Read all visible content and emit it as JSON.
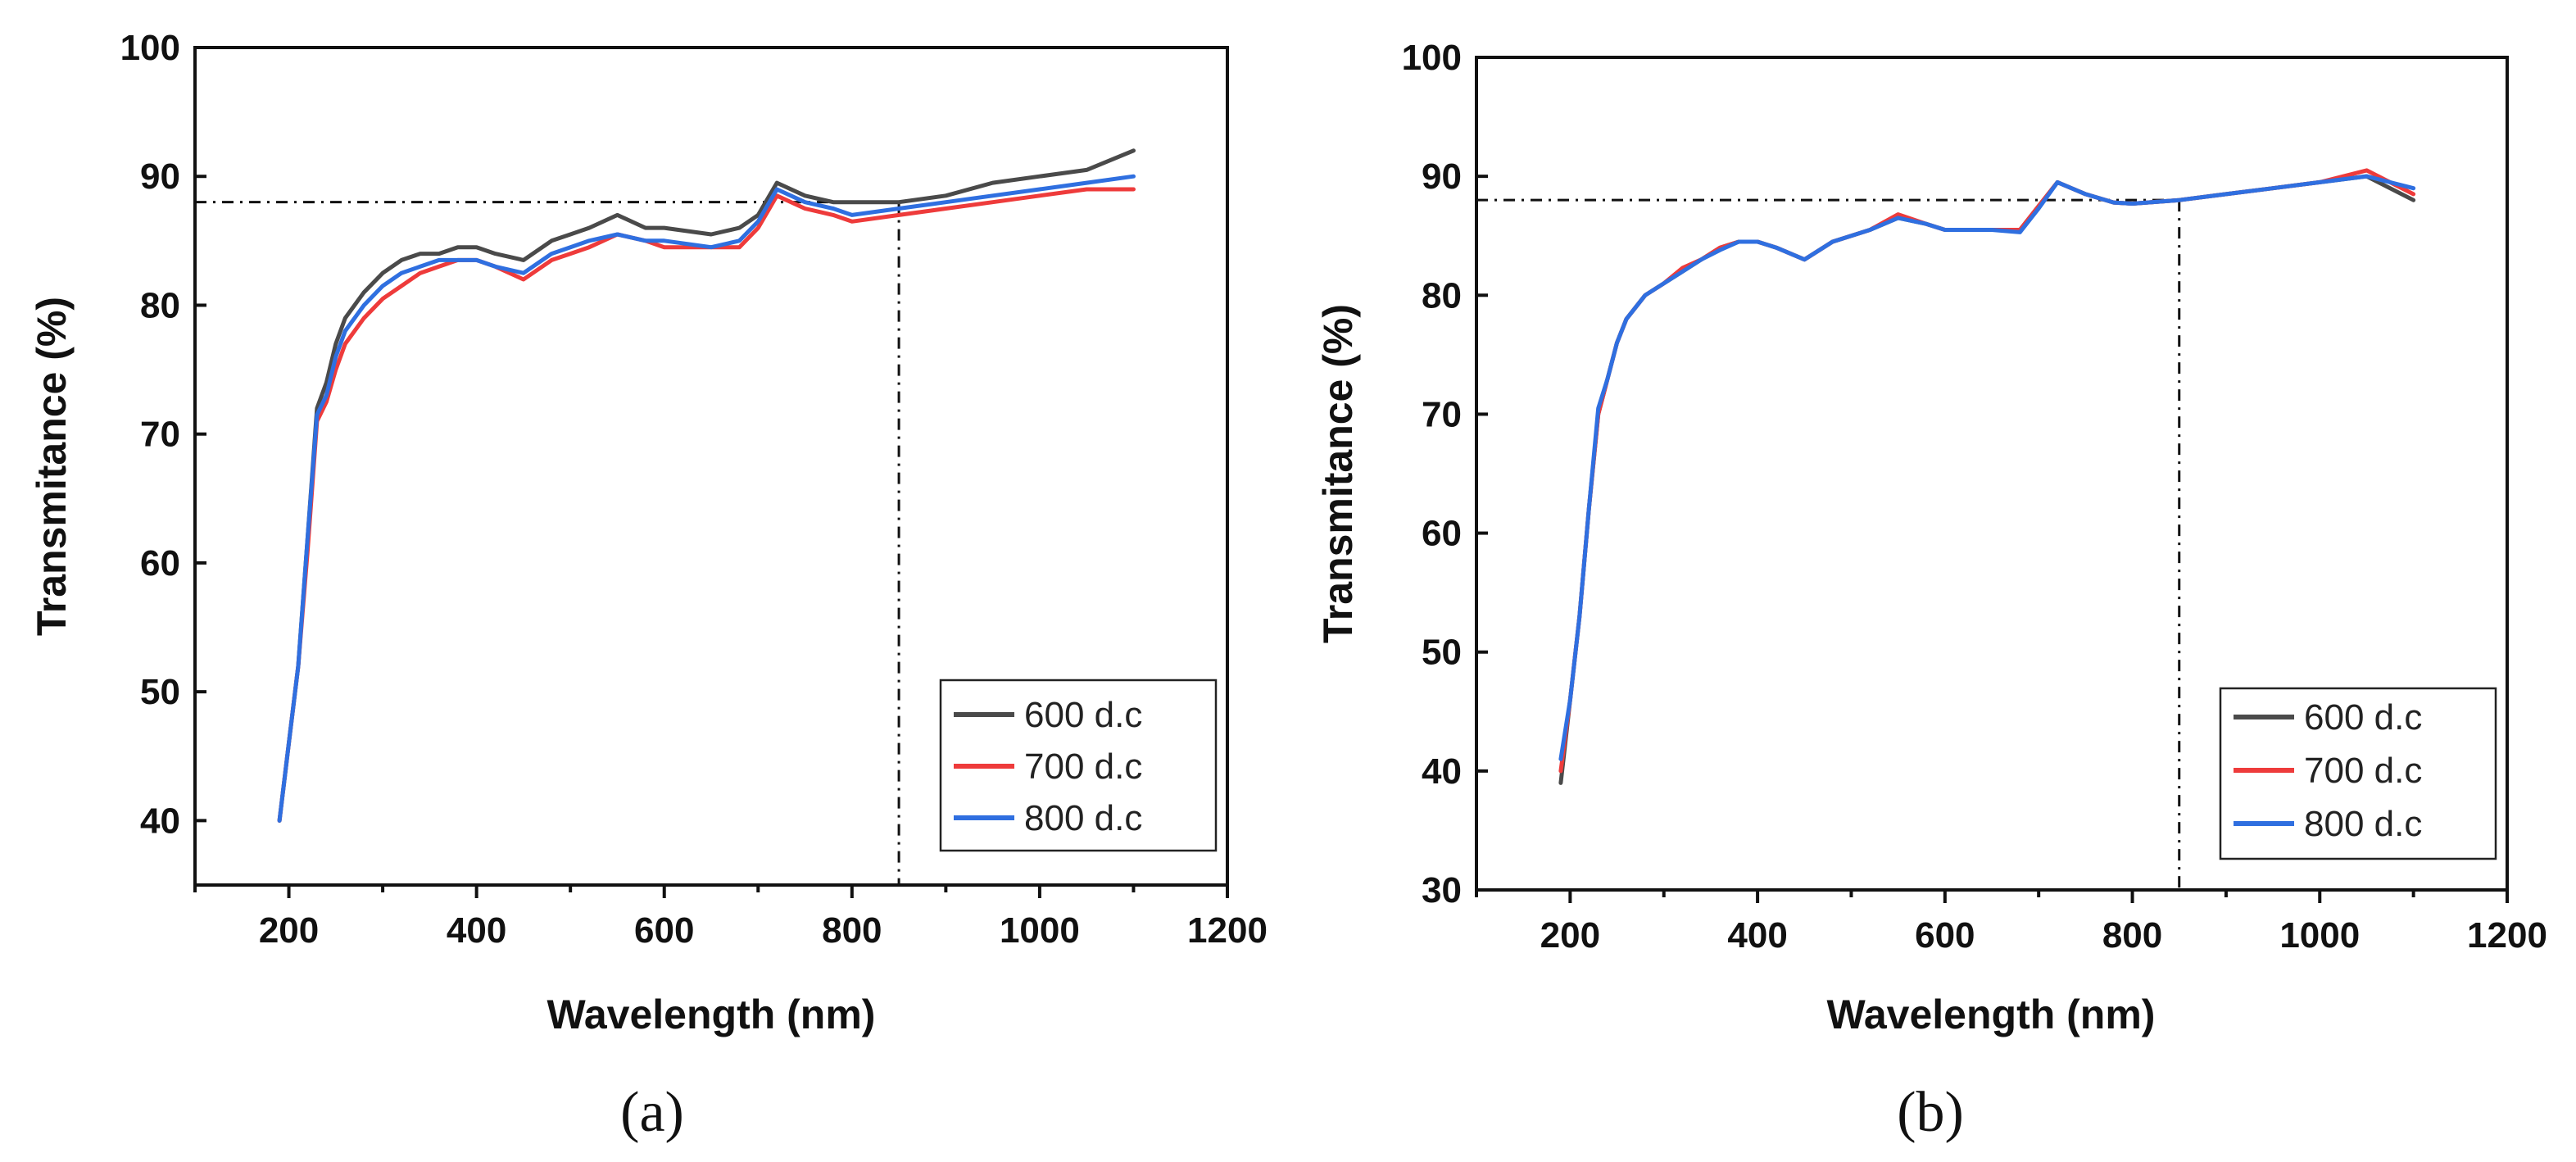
{
  "colors": {
    "series_600": "#4a4a4a",
    "series_700": "#ee3b3b",
    "series_800": "#2f6fe0",
    "reference_line": "#111111"
  },
  "chart_data": [
    {
      "id": "a",
      "panel_label": "(a)",
      "type": "line",
      "xlabel": "Wavelength (nm)",
      "ylabel": "Transmitance (%)",
      "xlim": [
        100,
        1200
      ],
      "ylim": [
        35,
        100
      ],
      "xticks": [
        "200",
        "400",
        "600",
        "800",
        "1000",
        "1200"
      ],
      "yticks": [
        "40",
        "50",
        "60",
        "70",
        "80",
        "90",
        "100"
      ],
      "xtick_values": [
        200,
        400,
        600,
        800,
        1000,
        1200
      ],
      "ytick_values": [
        40,
        50,
        60,
        70,
        80,
        90,
        100
      ],
      "reference": {
        "x": 850,
        "y": 88
      },
      "legend_position": "bottom-right",
      "x": [
        190,
        200,
        210,
        220,
        230,
        240,
        250,
        260,
        280,
        300,
        320,
        340,
        360,
        380,
        400,
        420,
        450,
        480,
        500,
        520,
        550,
        580,
        600,
        650,
        680,
        700,
        720,
        750,
        780,
        800,
        850,
        900,
        950,
        1000,
        1050,
        1100
      ],
      "series": [
        {
          "name": "600 d.c",
          "color_key": "series_600",
          "values": [
            40,
            46,
            52,
            62,
            72,
            74,
            77,
            79,
            81,
            82.5,
            83.5,
            84,
            84,
            84.5,
            84.5,
            84,
            83.5,
            85,
            85.5,
            86,
            87,
            86,
            86,
            85.5,
            86,
            87,
            89.5,
            88.5,
            88,
            88,
            88,
            88.5,
            89.5,
            90,
            90.5,
            92
          ]
        },
        {
          "name": "700 d.c",
          "color_key": "series_700",
          "values": [
            40,
            46,
            52,
            61,
            71,
            72.5,
            75,
            77,
            79,
            80.5,
            81.5,
            82.5,
            83,
            83.5,
            83.5,
            83,
            82,
            83.5,
            84,
            84.5,
            85.5,
            85,
            84.5,
            84.5,
            84.5,
            86,
            88.5,
            87.5,
            87,
            86.5,
            87,
            87.5,
            88,
            88.5,
            89,
            89
          ]
        },
        {
          "name": "800 d.c",
          "color_key": "series_800",
          "values": [
            40,
            46,
            52,
            62,
            71.5,
            73,
            76,
            78,
            80,
            81.5,
            82.5,
            83,
            83.5,
            83.5,
            83.5,
            83,
            82.5,
            84,
            84.5,
            85,
            85.5,
            85,
            85,
            84.5,
            85,
            86.5,
            89,
            88,
            87.5,
            87,
            87.5,
            88,
            88.5,
            89,
            89.5,
            90
          ]
        }
      ]
    },
    {
      "id": "b",
      "panel_label": "(b)",
      "type": "line",
      "xlabel": "Wavelength (nm)",
      "ylabel": "Transmitance (%)",
      "xlim": [
        100,
        1200
      ],
      "ylim": [
        30,
        100
      ],
      "xticks": [
        "200",
        "400",
        "600",
        "800",
        "1000",
        "1200"
      ],
      "yticks": [
        "30",
        "40",
        "50",
        "60",
        "70",
        "80",
        "90",
        "100"
      ],
      "xtick_values": [
        200,
        400,
        600,
        800,
        1000,
        1200
      ],
      "ytick_values": [
        30,
        40,
        50,
        60,
        70,
        80,
        90,
        100
      ],
      "reference": {
        "x": 850,
        "y": 88
      },
      "legend_position": "bottom-right",
      "x": [
        190,
        200,
        210,
        220,
        230,
        240,
        250,
        260,
        280,
        300,
        320,
        340,
        360,
        380,
        400,
        420,
        450,
        480,
        500,
        520,
        550,
        580,
        600,
        650,
        680,
        700,
        720,
        750,
        780,
        800,
        850,
        900,
        950,
        1000,
        1050,
        1100
      ],
      "series": [
        {
          "name": "600 d.c",
          "color_key": "series_600",
          "values": [
            39,
            46,
            53,
            62,
            70,
            73,
            76,
            78,
            80,
            81,
            82,
            83,
            84,
            84.5,
            84.5,
            84,
            83,
            84.5,
            85,
            85.5,
            86.5,
            86,
            85.5,
            85.5,
            85.5,
            87.5,
            89.5,
            88.5,
            87.8,
            87.7,
            88,
            88.5,
            89,
            89.5,
            90,
            88
          ]
        },
        {
          "name": "700 d.c",
          "color_key": "series_700",
          "values": [
            40,
            46,
            53,
            62,
            70,
            73,
            76,
            78,
            80,
            81,
            82.3,
            83,
            84,
            84.5,
            84.5,
            84,
            83,
            84.5,
            85,
            85.5,
            86.8,
            86,
            85.5,
            85.5,
            85.5,
            87.5,
            89.5,
            88.5,
            87.8,
            87.7,
            88,
            88.5,
            89,
            89.5,
            90.5,
            88.5
          ]
        },
        {
          "name": "800 d.c",
          "color_key": "series_800",
          "values": [
            41,
            46,
            53,
            62,
            70.5,
            73,
            76,
            78,
            80,
            81,
            82,
            83,
            83.8,
            84.5,
            84.5,
            84,
            83,
            84.5,
            85,
            85.5,
            86.5,
            86,
            85.5,
            85.5,
            85.3,
            87.3,
            89.5,
            88.5,
            87.8,
            87.7,
            88,
            88.5,
            89,
            89.5,
            90,
            89
          ]
        }
      ]
    }
  ]
}
